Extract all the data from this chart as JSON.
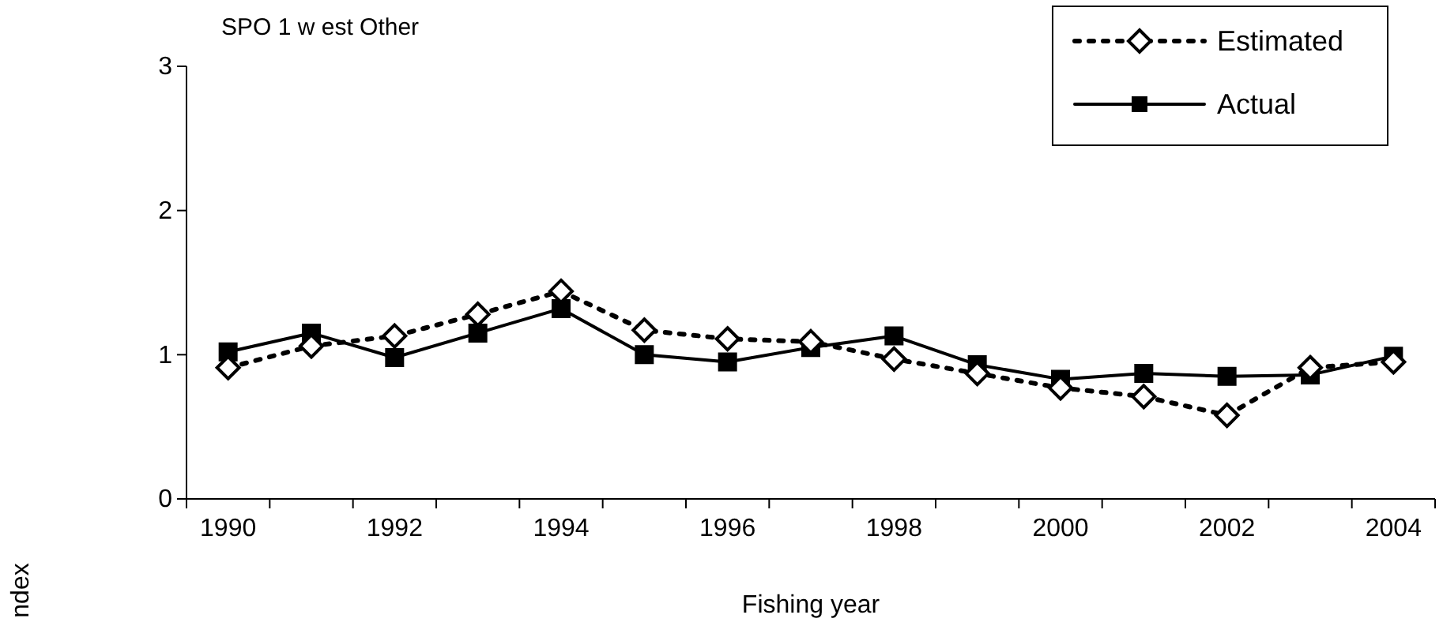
{
  "chart_data": {
    "type": "line",
    "title": "SPO 1 w est Other",
    "xlabel": "Fishing year",
    "ylabel": "ndex",
    "categories": [
      "1990",
      null,
      "1992",
      null,
      "1994",
      null,
      "1996",
      null,
      "1998",
      null,
      "2000",
      null,
      "2002",
      null,
      "2004"
    ],
    "series": [
      {
        "name": "Estimated",
        "color": "#000000",
        "marker": "diamond",
        "line_style": "dotted",
        "values": [
          0.91,
          1.06,
          1.13,
          1.28,
          1.44,
          1.17,
          1.11,
          1.09,
          0.97,
          0.87,
          0.77,
          0.71,
          0.58,
          0.91,
          0.95
        ]
      },
      {
        "name": "Actual",
        "color": "#000000",
        "marker": "square",
        "line_style": "solid",
        "values": [
          1.02,
          1.15,
          0.98,
          1.15,
          1.32,
          1.0,
          0.95,
          1.05,
          1.13,
          0.93,
          0.83,
          0.87,
          0.85,
          0.86,
          0.99
        ]
      }
    ],
    "ylim": [
      0,
      3
    ],
    "yticks": [
      0,
      1,
      2,
      3
    ],
    "grid": false,
    "legend": "top right"
  }
}
